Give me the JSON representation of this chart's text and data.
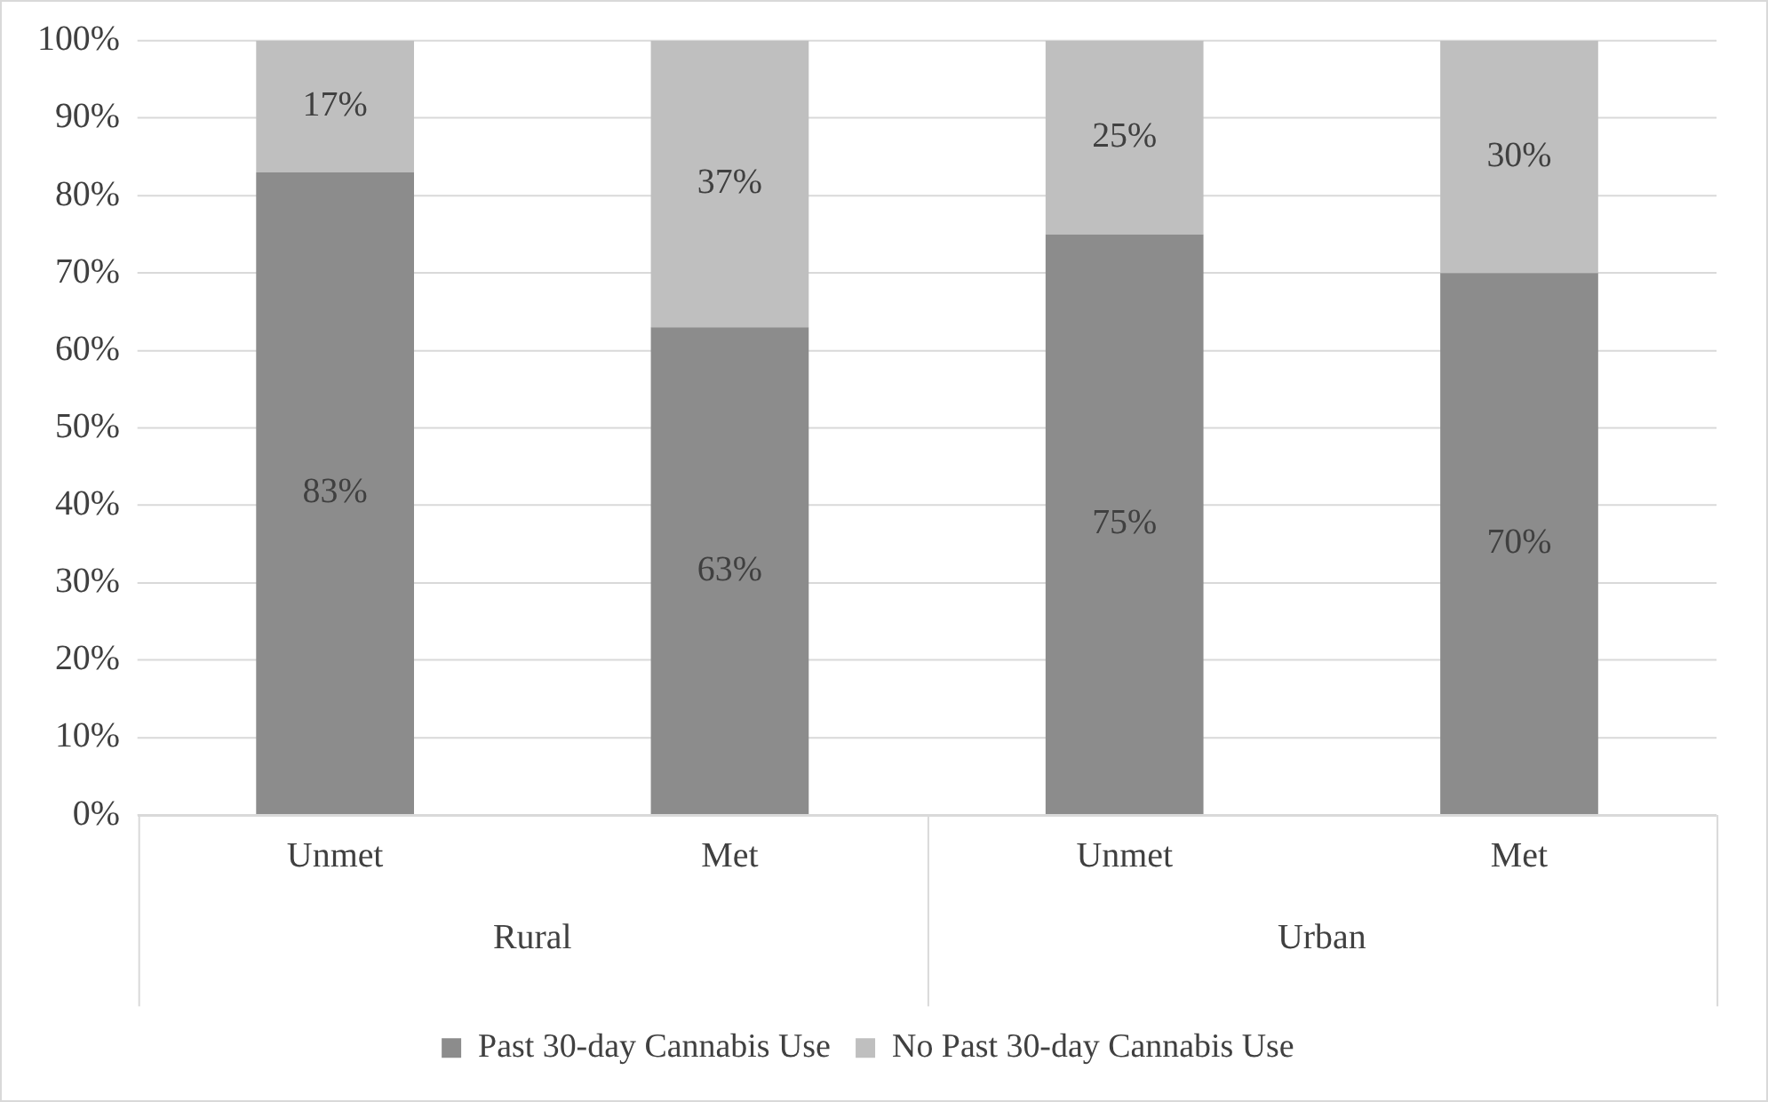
{
  "chart_data": {
    "type": "bar",
    "stacked": true,
    "categories": [
      "Unmet",
      "Met",
      "Unmet",
      "Met"
    ],
    "series": [
      {
        "name": "Past 30-day Cannabis Use",
        "color": "#8c8c8c",
        "values": [
          83,
          63,
          75,
          70
        ],
        "value_labels": [
          "83%",
          "63%",
          "75%",
          "70%"
        ]
      },
      {
        "name": "No Past 30-day Cannabis Use",
        "color": "#bfbfbf",
        "values": [
          17,
          37,
          25,
          30
        ],
        "value_labels": [
          "17%",
          "37%",
          "25%",
          "30%"
        ]
      }
    ],
    "ylim": [
      0,
      100
    ],
    "yticks": [
      {
        "value": 0,
        "label": "0%"
      },
      {
        "value": 10,
        "label": "10%"
      },
      {
        "value": 20,
        "label": "20%"
      },
      {
        "value": 30,
        "label": "30%"
      },
      {
        "value": 40,
        "label": "40%"
      },
      {
        "value": 50,
        "label": "50%"
      },
      {
        "value": 60,
        "label": "60%"
      },
      {
        "value": 70,
        "label": "70%"
      },
      {
        "value": 80,
        "label": "80%"
      },
      {
        "value": 90,
        "label": "90%"
      },
      {
        "value": 100,
        "label": "100%"
      }
    ],
    "annotations": [
      "Rural",
      "Urban"
    ],
    "grid": "y",
    "legend": "bottom"
  }
}
